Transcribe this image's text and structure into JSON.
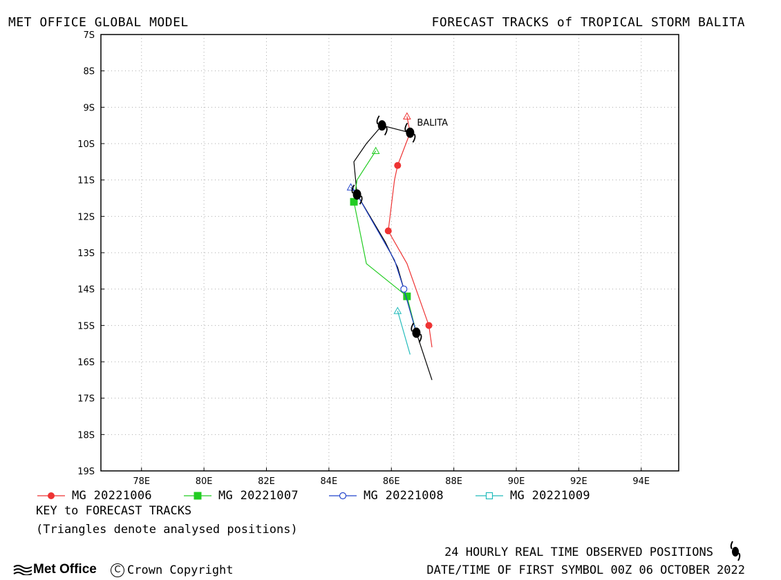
{
  "header": {
    "left_title": "MET OFFICE GLOBAL MODEL",
    "right_title": "FORECAST TRACKS of TROPICAL STORM BALITA"
  },
  "map": {
    "lon_range": [
      76.7,
      95.2
    ],
    "lat_range": [
      -7,
      -19
    ],
    "lon_ticks": [
      "78E",
      "80E",
      "82E",
      "84E",
      "86E",
      "88E",
      "90E",
      "92E",
      "94E"
    ],
    "lat_ticks": [
      "7S",
      "8S",
      "9S",
      "10S",
      "11S",
      "12S",
      "13S",
      "14S",
      "15S",
      "16S",
      "17S",
      "18S",
      "19S"
    ],
    "grid": "dotted",
    "storm_label": "BALITA",
    "observed_track": [
      [
        85.7,
        -9.5
      ],
      [
        86.6,
        -9.7
      ]
    ],
    "tracks": [
      {
        "name": "MG 20221006",
        "color": "#ee3333",
        "marker": "filled-circle",
        "analysed": [
          86.5,
          -9.25
        ],
        "points": [
          [
            86.5,
            -9.25
          ],
          [
            86.6,
            -9.7
          ],
          [
            86.2,
            -10.6
          ],
          [
            86.1,
            -11.0
          ],
          [
            86.0,
            -11.7
          ],
          [
            85.9,
            -12.4
          ],
          [
            86.5,
            -13.3
          ],
          [
            87.2,
            -15.0
          ],
          [
            87.3,
            -15.6
          ]
        ],
        "marked": [
          [
            86.2,
            -10.6
          ],
          [
            85.9,
            -12.4
          ],
          [
            87.2,
            -15.0
          ]
        ]
      },
      {
        "name": "MG 20221007",
        "color": "#22cc22",
        "marker": "filled-square",
        "analysed": [
          85.5,
          -10.2
        ],
        "points": [
          [
            85.5,
            -10.2
          ],
          [
            84.9,
            -11.0
          ],
          [
            84.8,
            -11.6
          ],
          [
            85.2,
            -13.3
          ],
          [
            86.5,
            -14.2
          ],
          [
            86.8,
            -15.2
          ]
        ],
        "marked": [
          [
            84.8,
            -11.6
          ],
          [
            86.5,
            -14.2
          ]
        ]
      },
      {
        "name": "MG 20221008",
        "color": "#2244cc",
        "marker": "open-circle",
        "analysed": [
          84.7,
          -11.2
        ],
        "points": [
          [
            84.7,
            -11.2
          ],
          [
            84.9,
            -11.4
          ],
          [
            86.1,
            -13.2
          ],
          [
            86.4,
            -14.0
          ],
          [
            86.8,
            -15.2
          ]
        ],
        "marked": [
          [
            86.4,
            -14.0
          ]
        ]
      },
      {
        "name": "MG 20221009",
        "color": "#22bbbb",
        "marker": "open-square",
        "analysed": [
          86.2,
          -14.6
        ],
        "points": [
          [
            86.2,
            -14.6
          ],
          [
            86.4,
            -15.2
          ],
          [
            86.6,
            -15.8
          ]
        ],
        "marked": []
      }
    ],
    "black_forecast": [
      [
        85.7,
        -9.5
      ],
      [
        85.2,
        -10.0
      ],
      [
        84.8,
        -10.5
      ],
      [
        84.9,
        -11.4
      ],
      [
        85.8,
        -12.7
      ],
      [
        86.2,
        -13.4
      ],
      [
        86.4,
        -14.0
      ],
      [
        86.8,
        -15.2
      ],
      [
        87.3,
        -16.5
      ]
    ],
    "observed_symbols": [
      [
        85.7,
        -9.5
      ],
      [
        86.6,
        -9.7
      ],
      [
        84.9,
        -11.4
      ],
      [
        86.8,
        -15.2
      ]
    ]
  },
  "legend": [
    {
      "label": "MG 20221006",
      "color": "#ee3333",
      "marker": "filled-circle"
    },
    {
      "label": "MG 20221007",
      "color": "#22cc22",
      "marker": "filled-square"
    },
    {
      "label": "MG 20221008",
      "color": "#2244cc",
      "marker": "open-circle"
    },
    {
      "label": "MG 20221009",
      "color": "#22bbbb",
      "marker": "open-square"
    }
  ],
  "key": {
    "title": "KEY to FORECAST TRACKS",
    "note": "(Triangles denote analysed positions)"
  },
  "footer": {
    "logo_text": "Met Office",
    "copyright_symbol": "C",
    "copyright_text": "Crown Copyright",
    "observed_caption": "24 HOURLY REAL TIME OBSERVED POSITIONS",
    "date_caption": "DATE/TIME OF FIRST SYMBOL 00Z 06 OCTOBER 2022"
  }
}
